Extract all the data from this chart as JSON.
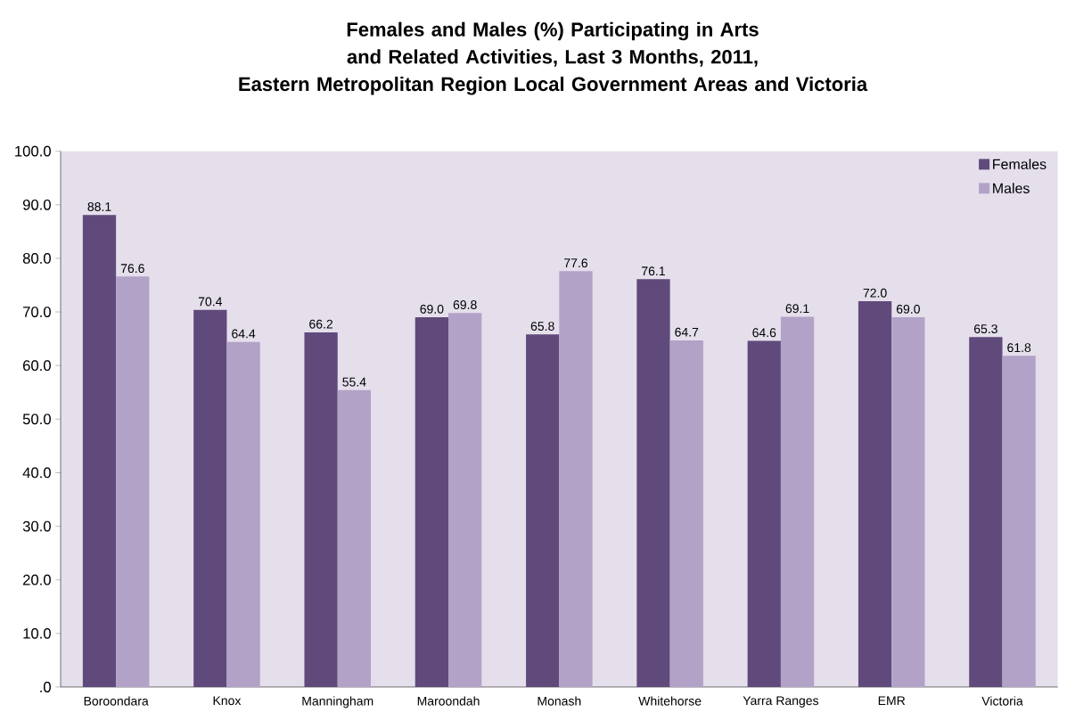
{
  "chart_data": {
    "type": "bar",
    "title": "Females and Males (%) Participating in Arts and Related Activities, Last 3 Months, 2011,",
    "subtitle": "Eastern Metropolitan Region Local Government Areas and Victoria",
    "categories": [
      "Boroondara",
      "Knox",
      "Manningham",
      "Maroondah",
      "Monash",
      "Whitehorse",
      "Yarra Ranges",
      "EMR",
      "Victoria"
    ],
    "series": [
      {
        "name": "Females",
        "color": "#604a7b",
        "values": [
          88.1,
          70.4,
          66.2,
          69.0,
          65.8,
          76.1,
          64.6,
          72.0,
          65.3
        ],
        "value_labels": [
          "88.1",
          "70.4",
          "66.2",
          "69.0",
          "65.8",
          "76.1",
          "64.6",
          "72.0",
          "65.3"
        ]
      },
      {
        "name": "Males",
        "color": "#b3a2c7",
        "values": [
          76.6,
          64.4,
          55.4,
          69.8,
          77.6,
          64.7,
          69.1,
          69.0,
          61.8
        ],
        "value_labels": [
          "76.6",
          "64.4",
          "55.4",
          "69.8",
          "77.6",
          "64.7",
          "69.1",
          "69.0",
          "61.8"
        ]
      }
    ],
    "ylim": [
      0,
      100
    ],
    "yticks": [
      {
        "value": 0,
        "label": ".0"
      },
      {
        "value": 10,
        "label": "10.0"
      },
      {
        "value": 20,
        "label": "20.0"
      },
      {
        "value": 30,
        "label": "30.0"
      },
      {
        "value": 40,
        "label": "40.0"
      },
      {
        "value": 50,
        "label": "50.0"
      },
      {
        "value": 60,
        "label": "60.0"
      },
      {
        "value": 70,
        "label": "70.0"
      },
      {
        "value": 80,
        "label": "80.0"
      },
      {
        "value": 90,
        "label": "90.0"
      },
      {
        "value": 100,
        "label": "100.0"
      }
    ],
    "grid": false,
    "legend": "top right"
  }
}
